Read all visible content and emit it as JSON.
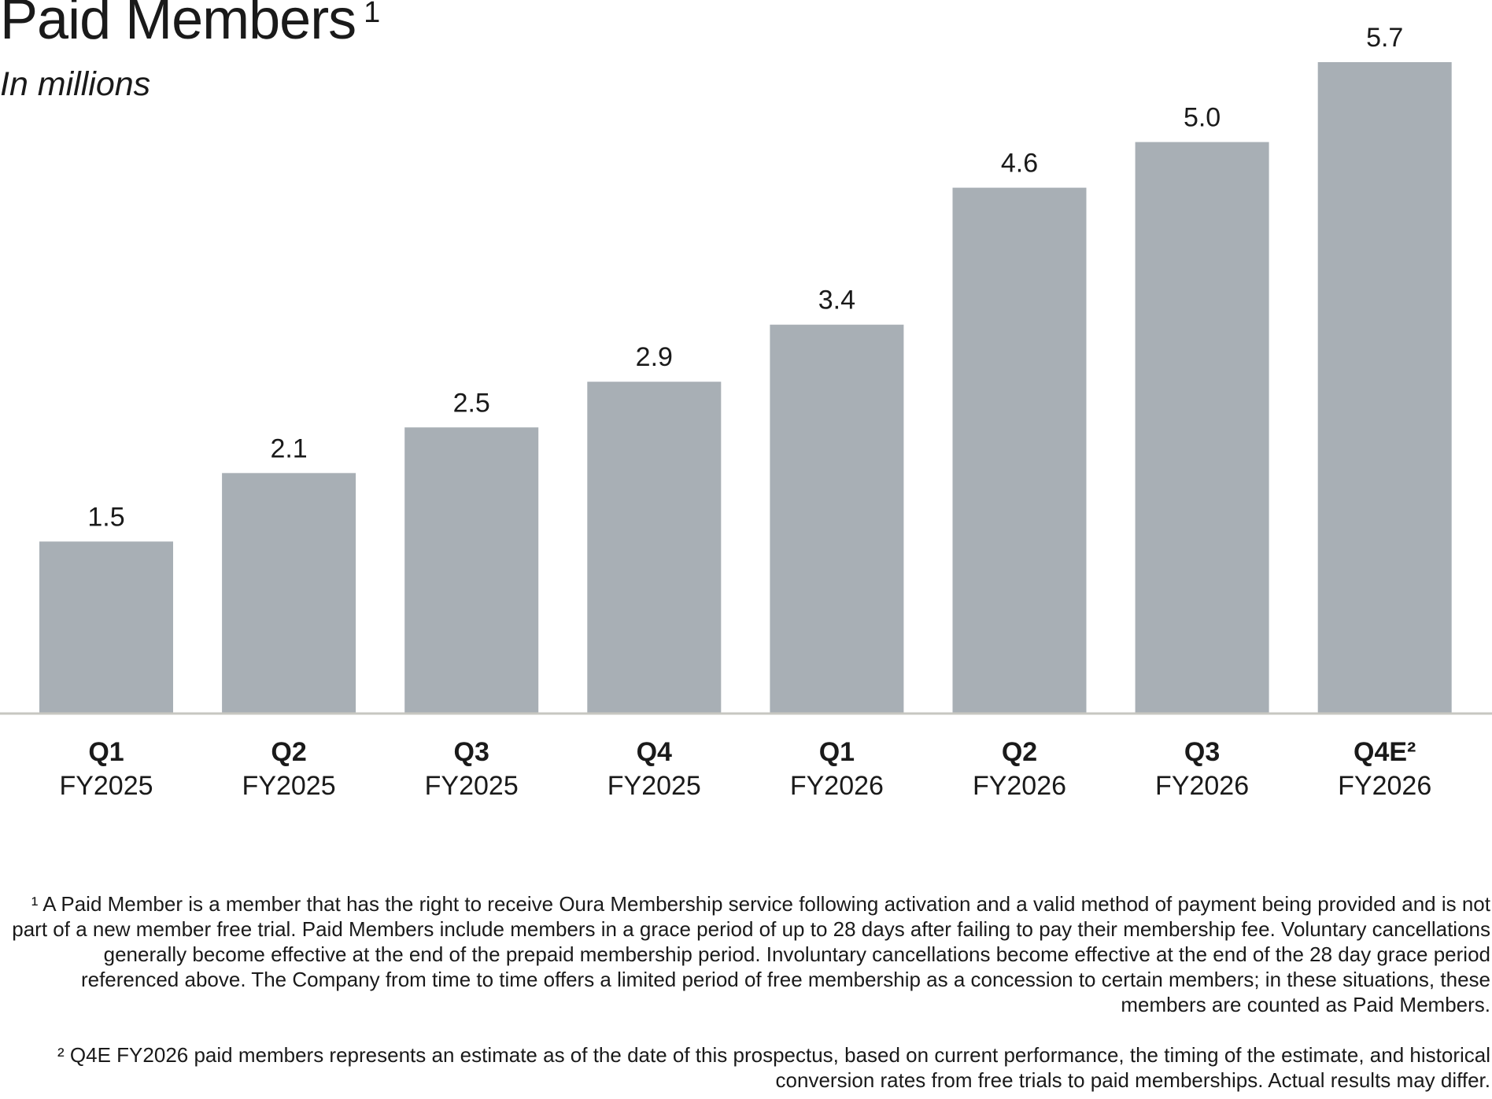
{
  "title": {
    "text": "Paid Members",
    "marker": "1"
  },
  "subtitle": "In millions",
  "colors": {
    "bar": "#a8afb5",
    "baseline": "#c7c7c1",
    "text": "#1a1a1a"
  },
  "chart_data": {
    "type": "bar",
    "title": "Paid Members",
    "subtitle": "In millions",
    "categories": [
      [
        "Q1",
        "FY2025"
      ],
      [
        "Q2",
        "FY2025"
      ],
      [
        "Q3",
        "FY2025"
      ],
      [
        "Q4",
        "FY2025"
      ],
      [
        "Q1",
        "FY2026"
      ],
      [
        "Q2",
        "FY2026"
      ],
      [
        "Q3",
        "FY2026"
      ],
      [
        "Q4E²",
        "FY2026"
      ]
    ],
    "values": [
      1.5,
      2.1,
      2.5,
      2.9,
      3.4,
      4.6,
      5.0,
      5.7
    ],
    "value_labels": [
      "1.5",
      "2.1",
      "2.5",
      "2.9",
      "3.4",
      "4.6",
      "5.0",
      "5.7"
    ],
    "xlabel": "",
    "ylabel": "",
    "ylim": [
      0,
      5.7
    ],
    "grid": false,
    "legend": "none"
  },
  "footnotes": [
    "¹ A Paid Member is a member that has the right to receive Oura Membership service following activation and a valid method of payment being provided and is not part of a new member free trial. Paid Members include members in a grace period of up to 28 days after failing to pay their membership fee. Voluntary cancellations generally become effective at the end of the prepaid membership period. Involuntary cancellations become effective at the end of the 28 day grace period referenced above.  The Company from time to time offers a limited period of free membership as a concession to certain members; in these situations, these members are counted as Paid Members.",
    "² Q4E FY2026 paid members represents an estimate as of the date of this prospectus, based on current performance, the timing of the estimate, and historical conversion rates from free trials to paid memberships. Actual results may differ."
  ]
}
